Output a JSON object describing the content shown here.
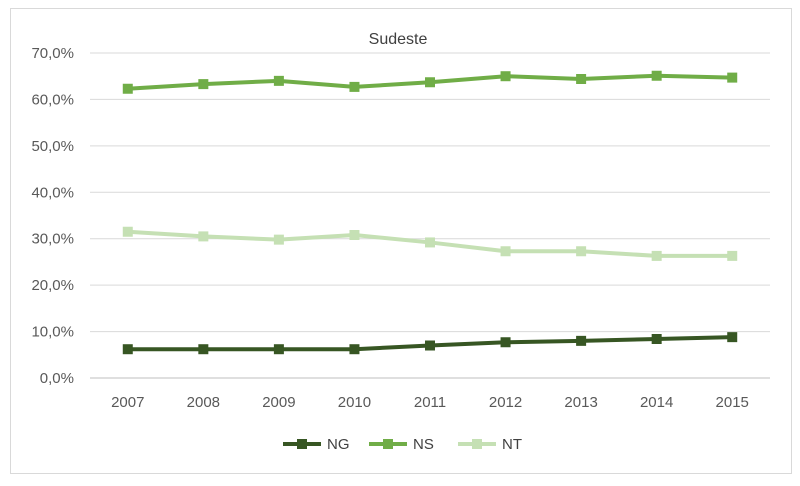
{
  "chart_data": {
    "type": "line",
    "title": "Sudeste",
    "xlabel": "",
    "ylabel": "",
    "categories": [
      "2007",
      "2008",
      "2009",
      "2010",
      "2011",
      "2012",
      "2013",
      "2014",
      "2015"
    ],
    "y_ticks": [
      "0,0%",
      "10,0%",
      "20,0%",
      "30,0%",
      "40,0%",
      "50,0%",
      "60,0%",
      "70,0%"
    ],
    "ylim": [
      0,
      70
    ],
    "grid": true,
    "legend_position": "bottom",
    "series": [
      {
        "name": "NG",
        "color": "#375623",
        "values": [
          6.2,
          6.2,
          6.2,
          6.2,
          7.0,
          7.7,
          8.0,
          8.4,
          8.8
        ]
      },
      {
        "name": "NS",
        "color": "#70ad47",
        "values": [
          62.3,
          63.3,
          64.0,
          62.7,
          63.7,
          65.0,
          64.4,
          65.1,
          64.7
        ]
      },
      {
        "name": "NT",
        "color": "#c5e0b4",
        "values": [
          31.5,
          30.5,
          29.8,
          30.8,
          29.2,
          27.3,
          27.3,
          26.3,
          26.3
        ]
      }
    ]
  }
}
